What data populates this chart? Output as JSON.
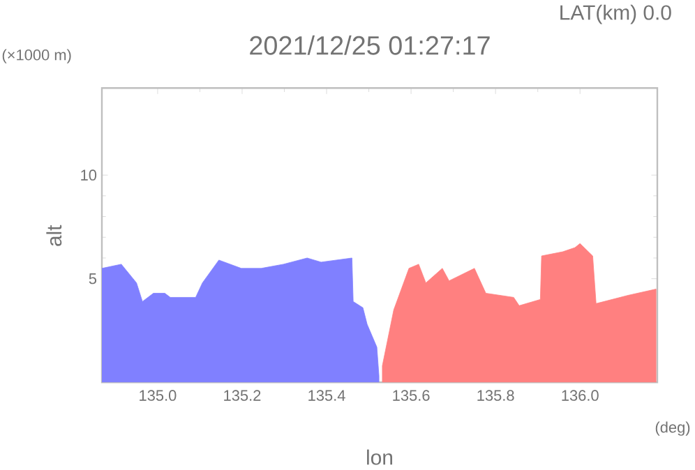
{
  "chart_data": {
    "type": "area",
    "title": "2021/12/25 01:27:17",
    "subtitle": "LAT(km) 0.0",
    "xlabel": "lon",
    "ylabel": "alt",
    "annotations": [
      "(×1000 m)",
      "(deg)"
    ],
    "xlim": [
      134.868,
      136.183
    ],
    "ylim": [
      0,
      14.2
    ],
    "xticks": [
      {
        "value": 135,
        "label": "135.0"
      },
      {
        "value": 135.2,
        "label": "135.2"
      },
      {
        "value": 135.4,
        "label": "135.4"
      },
      {
        "value": 135.6,
        "label": "135.6"
      },
      {
        "value": 135.8,
        "label": "135.8"
      },
      {
        "value": 136,
        "label": "136.0"
      }
    ],
    "yticks": [
      5,
      10
    ],
    "series": [
      {
        "color": "#8080ff",
        "x": [
          134.868,
          134.914,
          134.95,
          134.964,
          134.99,
          135.017,
          135.03,
          135.09,
          135.106,
          135.145,
          135.198,
          135.245,
          135.298,
          135.354,
          135.387,
          135.46,
          135.463,
          135.486,
          135.496,
          135.519,
          135.524
        ],
        "values": [
          5.5,
          5.7,
          4.8,
          3.9,
          4.3,
          4.3,
          4.1,
          4.1,
          4.8,
          5.9,
          5.5,
          5.5,
          5.7,
          6.0,
          5.8,
          6.0,
          3.9,
          3.6,
          2.8,
          1.7,
          0.3
        ]
      },
      {
        "color": "#ff8080",
        "x": [
          135.532,
          135.559,
          135.595,
          135.618,
          135.635,
          135.674,
          135.69,
          135.75,
          135.777,
          135.843,
          135.856,
          135.906,
          135.909,
          135.959,
          135.988,
          136.0,
          136.03,
          136.038,
          136.114,
          136.18
        ],
        "values": [
          0.8,
          3.5,
          5.5,
          5.7,
          4.8,
          5.5,
          4.9,
          5.5,
          4.3,
          4.1,
          3.7,
          4.0,
          6.1,
          6.3,
          6.5,
          6.7,
          6.1,
          3.8,
          4.2,
          4.5
        ]
      }
    ]
  }
}
